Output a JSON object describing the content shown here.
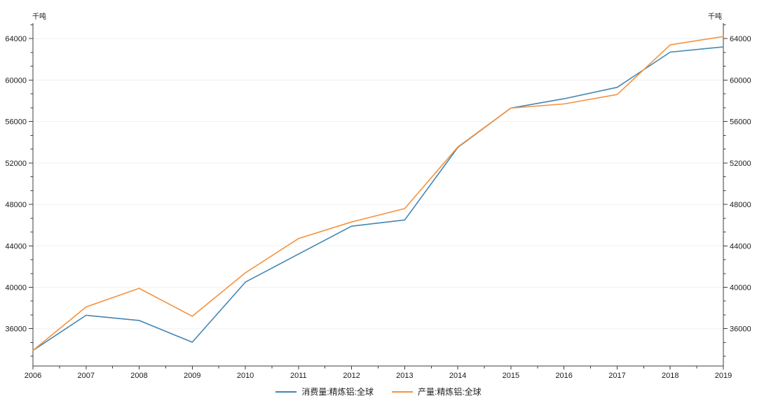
{
  "chart_data": {
    "type": "line",
    "title": "",
    "xlabel": "",
    "ylabel": "千吨",
    "unit_label_left": "千吨",
    "unit_label_right": "千吨",
    "x": [
      2006,
      2007,
      2008,
      2009,
      2010,
      2011,
      2012,
      2013,
      2014,
      2015,
      2016,
      2017,
      2018,
      2019
    ],
    "xtick_labels": [
      "2006",
      "2007",
      "2008",
      "2009",
      "2010",
      "2011",
      "2012",
      "2013",
      "2014",
      "2015",
      "2016",
      "2017",
      "2018",
      "2019"
    ],
    "series": [
      {
        "name": "消费量:精炼铝:全球",
        "color": "#4186b4",
        "values": [
          33900,
          37300,
          36800,
          34700,
          40500,
          43200,
          45900,
          46500,
          53500,
          57300,
          58200,
          59300,
          62700,
          63200
        ]
      },
      {
        "name": "产量:精炼铝:全球",
        "color": "#f5923e",
        "values": [
          33900,
          38100,
          39900,
          37200,
          41400,
          44700,
          46300,
          47600,
          53550,
          57300,
          57700,
          58600,
          63400,
          64200
        ]
      }
    ],
    "ylim": [
      32400,
      65500
    ],
    "yticks": [
      36000,
      40000,
      44000,
      48000,
      52000,
      56000,
      60000,
      64000
    ],
    "ytick_labels": [
      "36000",
      "40000",
      "44000",
      "48000",
      "52000",
      "56000",
      "60000",
      "64000"
    ],
    "y_minor_per_major": 3,
    "grid": "horizontal-major",
    "legend_position": "bottom-center",
    "dual_y_axis": true
  },
  "colors": {
    "background": "#ffffff",
    "axis": "#3c3c3c",
    "grid": "#f0f0f0",
    "tick_text": "#1a1a1a",
    "series_consumption": "#4186b4",
    "series_production": "#f5923e"
  }
}
